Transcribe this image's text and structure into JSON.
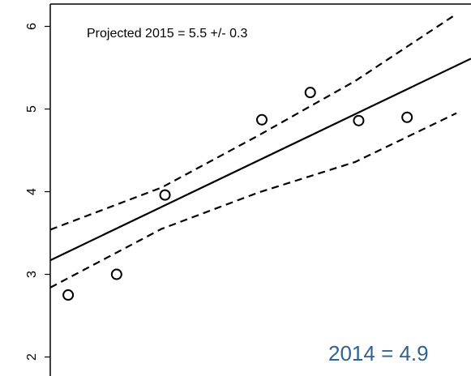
{
  "chart_data": {
    "type": "scatter",
    "annotations": [
      "Projected 2015 = 5.5 +/- 0.3",
      "2014 = 4.9"
    ],
    "annotation_colors": [
      "#000000",
      "#2e6393"
    ],
    "xlim": [
      2006.63,
      2015.32
    ],
    "ylim": [
      1.77,
      6.27
    ],
    "yticks": [
      2,
      3,
      4,
      5,
      6
    ],
    "points": {
      "x": [
        2007,
        2008,
        2009,
        2011,
        2012,
        2013,
        2014
      ],
      "y": [
        2.75,
        3.0,
        3.96,
        4.87,
        5.2,
        4.86,
        4.9
      ],
      "color": "#000000"
    },
    "lines": [
      {
        "x": [
          2006.63,
          2015.32
        ],
        "y": [
          3.17,
          5.61
        ],
        "color": "#000000",
        "dash": false
      },
      {
        "x": [
          2006.63,
          2008.93,
          2010.93,
          2012.93,
          2015.02
        ],
        "y": [
          3.54,
          4.05,
          4.68,
          5.34,
          6.15
        ],
        "color": "#000000",
        "dash": true
      },
      {
        "x": [
          2006.63,
          2008.93,
          2010.93,
          2012.93,
          2015.02
        ],
        "y": [
          2.84,
          3.55,
          3.99,
          4.36,
          4.95
        ],
        "color": "#000000",
        "dash": true
      }
    ]
  }
}
